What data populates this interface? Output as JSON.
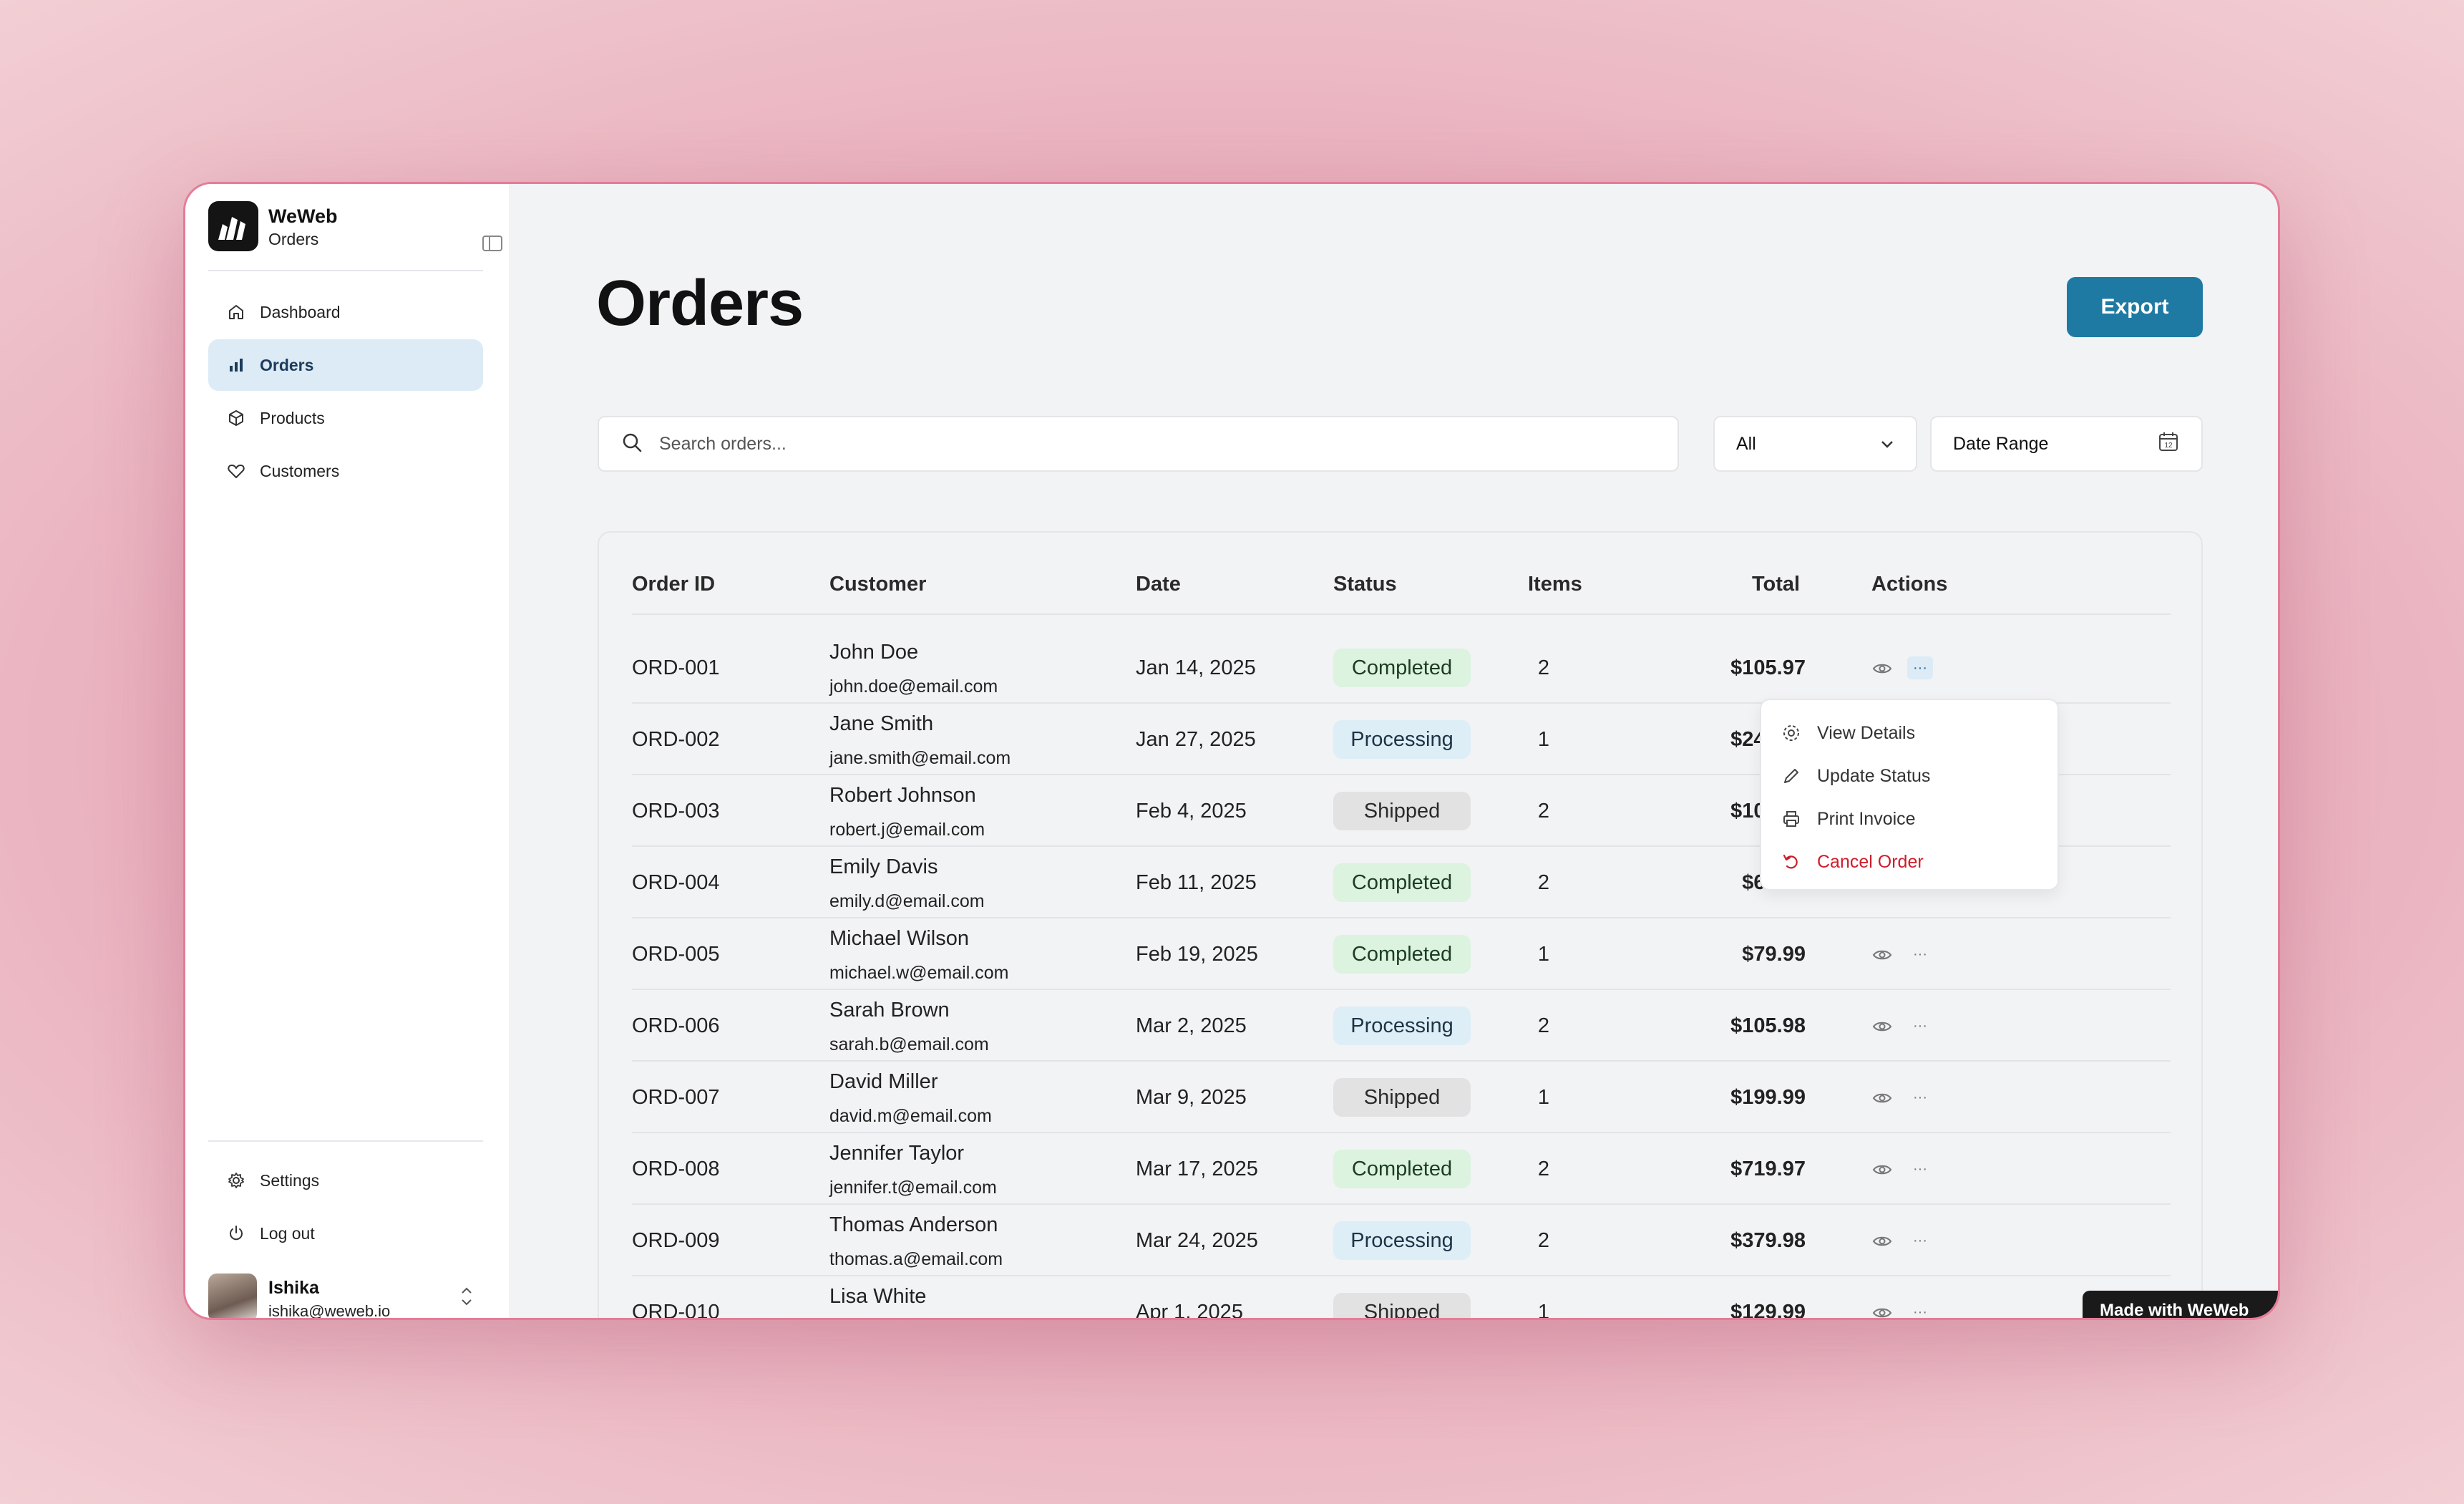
{
  "sidebar": {
    "brand_name": "WeWeb",
    "brand_sub": "Orders",
    "nav": [
      {
        "label": "Dashboard",
        "icon": "home-icon"
      },
      {
        "label": "Orders",
        "icon": "bar-chart-icon",
        "active": true
      },
      {
        "label": "Products",
        "icon": "box-icon"
      },
      {
        "label": "Customers",
        "icon": "heart-icon"
      }
    ],
    "bottom": [
      {
        "label": "Settings",
        "icon": "gear-icon"
      },
      {
        "label": "Log out",
        "icon": "power-icon"
      }
    ],
    "user": {
      "name": "Ishika",
      "email": "ishika@weweb.io"
    }
  },
  "main": {
    "title": "Orders",
    "export_label": "Export",
    "search_placeholder": "Search orders...",
    "status_filter": "All",
    "date_range_label": "Date Range"
  },
  "table": {
    "headers": [
      "Order ID",
      "Customer",
      "Date",
      "Status",
      "Items",
      "Total",
      "Actions"
    ],
    "rows": [
      {
        "id": "ORD-001",
        "name": "John Doe",
        "email": "john.doe@email.com",
        "date": "Jan 14, 2025",
        "status": "Completed",
        "items": "2",
        "total": "$105.97"
      },
      {
        "id": "ORD-002",
        "name": "Jane Smith",
        "email": "jane.smith@email.com",
        "date": "Jan 27, 2025",
        "status": "Processing",
        "items": "1",
        "total": "$249.99"
      },
      {
        "id": "ORD-003",
        "name": "Robert Johnson",
        "email": "robert.j@email.com",
        "date": "Feb 4, 2025",
        "status": "Shipped",
        "items": "2",
        "total": "$109.98"
      },
      {
        "id": "ORD-004",
        "name": "Emily Davis",
        "email": "emily.d@email.com",
        "date": "Feb 11, 2025",
        "status": "Completed",
        "items": "2",
        "total": "$60.98"
      },
      {
        "id": "ORD-005",
        "name": "Michael Wilson",
        "email": "michael.w@email.com",
        "date": "Feb 19, 2025",
        "status": "Completed",
        "items": "1",
        "total": "$79.99"
      },
      {
        "id": "ORD-006",
        "name": "Sarah Brown",
        "email": "sarah.b@email.com",
        "date": "Mar 2, 2025",
        "status": "Processing",
        "items": "2",
        "total": "$105.98"
      },
      {
        "id": "ORD-007",
        "name": "David Miller",
        "email": "david.m@email.com",
        "date": "Mar 9, 2025",
        "status": "Shipped",
        "items": "1",
        "total": "$199.99"
      },
      {
        "id": "ORD-008",
        "name": "Jennifer Taylor",
        "email": "jennifer.t@email.com",
        "date": "Mar 17, 2025",
        "status": "Completed",
        "items": "2",
        "total": "$719.97"
      },
      {
        "id": "ORD-009",
        "name": "Thomas Anderson",
        "email": "thomas.a@email.com",
        "date": "Mar 24, 2025",
        "status": "Processing",
        "items": "2",
        "total": "$379.98"
      },
      {
        "id": "ORD-010",
        "name": "Lisa White",
        "email": "",
        "date": "Apr 1, 2025",
        "status": "Shipped",
        "items": "1",
        "total": "$129.99"
      }
    ]
  },
  "actions_menu": [
    {
      "label": "View Details",
      "icon": "settings-icon"
    },
    {
      "label": "Update Status",
      "icon": "pencil-icon"
    },
    {
      "label": "Print Invoice",
      "icon": "printer-icon"
    },
    {
      "label": "Cancel Order",
      "icon": "undo-icon",
      "danger": true
    }
  ],
  "badge": "Made with WeWeb",
  "colors": {
    "accent": "#1f7aa3",
    "active_nav_bg": "#dcebf5",
    "completed_bg": "#dcf3df",
    "processing_bg": "#ddeef7",
    "shipped_bg": "#e2e2e2",
    "danger": "#d01c2a"
  }
}
